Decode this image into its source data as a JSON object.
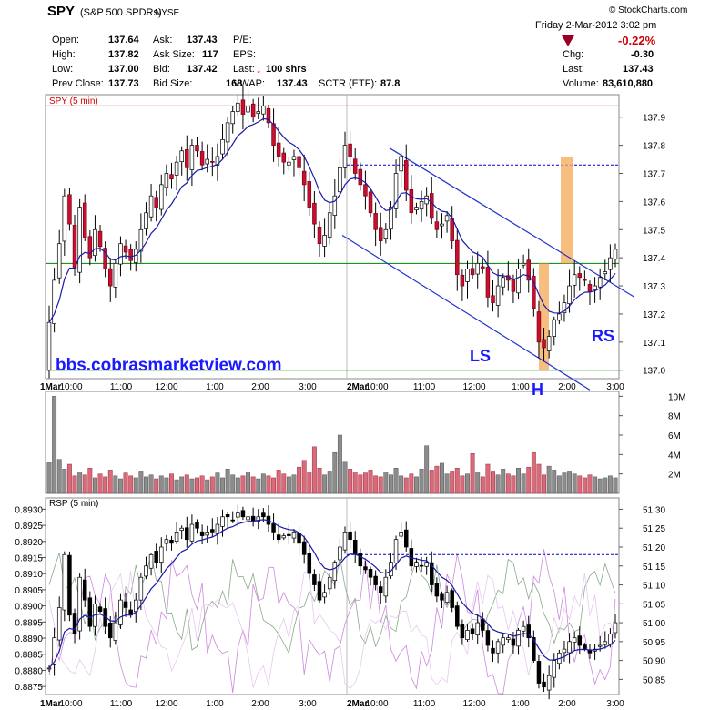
{
  "header": {
    "symbol": "SPY",
    "name": "(S&P 500 SPDRs)",
    "exchange": "NYSE",
    "date_line": "Friday  2-Mar-2012  3:02 pm",
    "credit": "© StockCharts.com",
    "change_pct": "-0.22%",
    "change_arrow_color": "#990022",
    "quote_fields": [
      {
        "label": "Open:",
        "value": "137.64"
      },
      {
        "label": "High:",
        "value": "137.82"
      },
      {
        "label": "Low:",
        "value": "137.00"
      },
      {
        "label": "Prev Close:",
        "value": "137.73"
      },
      {
        "label": "Ask:",
        "value": "137.43"
      },
      {
        "label": "Ask Size:",
        "value": "117"
      },
      {
        "label": "Bid:",
        "value": "137.42"
      },
      {
        "label": "Bid Size:",
        "value": "168"
      },
      {
        "label": "P/E:",
        "value": ""
      },
      {
        "label": "EPS:",
        "value": ""
      },
      {
        "label": "Last:",
        "value": "100 shrs"
      },
      {
        "label": "VWAP:",
        "value": "137.43"
      },
      {
        "label": "SCTR (ETF):",
        "value": "87.8"
      },
      {
        "label": "Chg:",
        "value": "-0.30"
      },
      {
        "label": "Last:",
        "value": "137.43"
      },
      {
        "label": "Volume:",
        "value": "83,610,880"
      }
    ]
  },
  "annotations": {
    "watermark": "bbs.cobrasmarketview.com",
    "left_shoulder": "LS",
    "head": "H",
    "right_shoulder": "RS",
    "channel_color": "#2233cc",
    "bar_highlight_color": "#f5a855"
  },
  "chart_data": [
    {
      "type": "candlestick",
      "title": "SPY (5 min)",
      "ylim": [
        136.97,
        137.98
      ],
      "y_ticks": [
        "137.9",
        "137.8",
        "137.7",
        "137.6",
        "137.5",
        "137.4",
        "137.3",
        "137.2",
        "137.1",
        "137.0"
      ],
      "x_tick_labels": [
        "1Mar",
        "10:00",
        "11:00",
        "12:00",
        "1:00",
        "2:00",
        "3:00",
        "2Mar",
        "10:00",
        "11:00",
        "12:00",
        "1:00",
        "2:00",
        "3:00"
      ],
      "reference_lines": [
        {
          "value": 137.94,
          "style": "solid",
          "color": "#cc0000"
        },
        {
          "value": 137.73,
          "style": "dashed",
          "color": "#0000cc"
        },
        {
          "value": 137.38,
          "style": "solid",
          "color": "#008000"
        },
        {
          "value": 137.0,
          "style": "solid",
          "color": "#008000"
        }
      ],
      "close": [
        137.17,
        137.32,
        137.45,
        137.62,
        137.52,
        137.36,
        137.58,
        137.47,
        137.4,
        137.5,
        137.44,
        137.36,
        137.3,
        137.38,
        137.45,
        137.42,
        137.39,
        137.43,
        137.5,
        137.56,
        137.62,
        137.58,
        137.66,
        137.7,
        137.68,
        137.74,
        137.78,
        137.72,
        137.8,
        137.78,
        137.73,
        137.75,
        137.74,
        137.76,
        137.82,
        137.88,
        137.92,
        137.95,
        137.91,
        137.94,
        137.9,
        137.92,
        137.94,
        137.88,
        137.8,
        137.76,
        137.74,
        137.74,
        137.76,
        137.72,
        137.66,
        137.58,
        137.52,
        137.45,
        137.48,
        137.56,
        137.62,
        137.72,
        137.8,
        137.76,
        137.7,
        137.66,
        137.62,
        137.56,
        137.5,
        137.46,
        137.5,
        137.58,
        137.7,
        137.76,
        137.64,
        137.56,
        137.58,
        137.6,
        137.62,
        137.54,
        137.5,
        137.52,
        137.55,
        137.46,
        137.34,
        137.3,
        137.36,
        137.34,
        137.38,
        137.36,
        137.26,
        137.24,
        137.3,
        137.33,
        137.32,
        137.28,
        137.36,
        137.38,
        137.32,
        137.22,
        137.1,
        137.08,
        137.12,
        137.18,
        137.2,
        137.24,
        137.3,
        137.34,
        137.33,
        137.32,
        137.28,
        137.3,
        137.33,
        137.35,
        137.4,
        137.43
      ],
      "volume_ylim": [
        0,
        10.5
      ],
      "volume_ticks": [
        "10M",
        "8M",
        "6M",
        "4M",
        "2M"
      ],
      "volume": [
        3.2,
        10.0,
        3.5,
        2.5,
        3.0,
        1.8,
        2.2,
        1.9,
        2.6,
        1.6,
        2.0,
        1.7,
        2.4,
        1.8,
        1.5,
        2.1,
        1.8,
        1.6,
        2.3,
        1.7,
        1.9,
        1.5,
        1.8,
        1.6,
        2.0,
        1.4,
        1.7,
        1.9,
        1.5,
        1.6,
        1.8,
        1.4,
        1.7,
        2.1,
        1.6,
        2.5,
        1.9,
        1.6,
        1.8,
        2.2,
        1.7,
        1.5,
        2.0,
        1.8,
        1.6,
        2.4,
        2.0,
        1.7,
        1.9,
        2.7,
        3.4,
        2.2,
        4.8,
        2.6,
        1.9,
        2.3,
        4.2,
        6.0,
        3.3,
        2.5,
        2.2,
        1.9,
        2.1,
        2.4,
        1.8,
        1.7,
        2.2,
        1.9,
        2.6,
        1.8,
        1.6,
        2.0,
        1.7,
        2.5,
        4.9,
        2.4,
        2.8,
        3.1,
        2.0,
        2.3,
        2.6,
        1.8,
        2.0,
        4.1,
        2.2,
        1.7,
        3.0,
        2.3,
        1.9,
        2.5,
        2.0,
        1.8,
        2.6,
        2.0,
        2.7,
        4.2,
        3.0,
        1.9,
        2.8,
        2.4,
        1.8,
        2.1,
        2.3,
        2.0,
        1.8,
        1.6,
        1.9,
        1.7,
        1.5,
        1.6,
        1.8,
        1.6
      ]
    },
    {
      "type": "line",
      "title": "RSP (5 min)",
      "left_ylim": [
        0.88725,
        0.89335
      ],
      "left_ticks": [
        "0.8930",
        "0.8925",
        "0.8920",
        "0.8915",
        "0.8910",
        "0.8905",
        "0.8900",
        "0.8895",
        "0.8890",
        "0.8885",
        "0.8880",
        "0.8875"
      ],
      "right_ylim": [
        50.81,
        51.33
      ],
      "right_ticks": [
        "51.30",
        "51.25",
        "51.20",
        "51.15",
        "51.10",
        "51.05",
        "51.00",
        "50.95",
        "50.90",
        "50.85"
      ],
      "reference_line": 51.18,
      "x_tick_labels": [
        "1Mar",
        "10:00",
        "11:00",
        "12:00",
        "1:00",
        "2:00",
        "3:00",
        "2Mar",
        "10:00",
        "11:00",
        "12:00",
        "1:00",
        "2:00",
        "3:00"
      ],
      "rsp_price": [
        50.88,
        50.96,
        51.04,
        51.18,
        51.02,
        50.97,
        51.12,
        51.06,
        50.99,
        51.05,
        51.03,
        50.99,
        50.96,
        51.0,
        51.06,
        51.04,
        51.02,
        51.06,
        51.12,
        51.15,
        51.18,
        51.16,
        51.2,
        51.22,
        51.21,
        51.24,
        51.25,
        51.22,
        51.26,
        51.25,
        51.23,
        51.24,
        51.24,
        51.26,
        51.28,
        51.28,
        51.27,
        51.29,
        51.28,
        51.28,
        51.27,
        51.28,
        51.28,
        51.26,
        51.24,
        51.22,
        51.23,
        51.23,
        51.24,
        51.21,
        51.18,
        51.13,
        51.1,
        51.06,
        51.08,
        51.12,
        51.16,
        51.2,
        51.24,
        51.22,
        51.18,
        51.15,
        51.14,
        51.12,
        51.1,
        51.08,
        51.12,
        51.16,
        51.22,
        51.24,
        51.2,
        51.15,
        51.16,
        51.15,
        51.16,
        51.1,
        51.07,
        51.06,
        51.08,
        51.04,
        50.99,
        50.96,
        50.98,
        50.97,
        51.0,
        50.98,
        50.94,
        50.92,
        50.95,
        50.96,
        50.96,
        50.94,
        50.98,
        50.99,
        50.96,
        50.9,
        50.84,
        50.83,
        50.86,
        50.9,
        50.92,
        50.93,
        50.95,
        50.96,
        50.94,
        50.93,
        50.92,
        50.93,
        50.94,
        50.95,
        50.97,
        51.0
      ]
    }
  ]
}
